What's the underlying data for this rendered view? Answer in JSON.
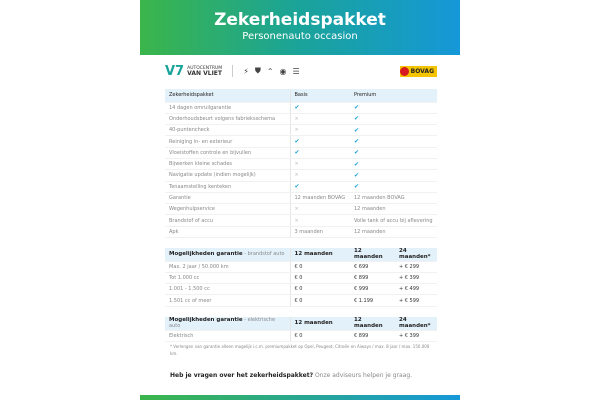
{
  "header": {
    "title": "Zekerheidspakket",
    "subtitle": "Personenauto occasion"
  },
  "logos": {
    "brand_line1": "AUTOCENTRUM",
    "brand_line2": "VAN VLIET",
    "car_brands": [
      "Opel",
      "Peugeot",
      "Citroën",
      "Dacia-like"
    ],
    "bovag": "BOVAG"
  },
  "package_table": {
    "headers": [
      "Zekerheidspakket",
      "Basis",
      "Premium"
    ],
    "rows": [
      [
        "14 dagen omruilgarantie",
        "check",
        "check"
      ],
      [
        "Onderhoudsbeurt volgens fabrieksschema",
        "cross",
        "check"
      ],
      [
        "40-puntencheck",
        "cross",
        "check"
      ],
      [
        "Reiniging in- en exterieur",
        "check",
        "check"
      ],
      [
        "Vloeistoffen controle en bijvullen",
        "check",
        "check"
      ],
      [
        "Bijwerken kleine schades",
        "cross",
        "check"
      ],
      [
        "Navigatie update (indien mogelijk)",
        "cross",
        "check"
      ],
      [
        "Tenaamstelling kenteken",
        "check",
        "check"
      ],
      [
        "Garantie",
        "12 maanden BOVAG",
        "12 maanden BOVAG"
      ],
      [
        "Wegenhulpservice",
        "cross",
        "12 maanden"
      ],
      [
        "Brandstof of accu",
        "cross",
        "Volle tank of accu bij aflevering"
      ],
      [
        "Apk",
        "3 maanden",
        "12 maanden"
      ]
    ]
  },
  "fuel_table": {
    "title": "Mogelijkheden garantie",
    "subtitle": "- brandstof auto",
    "headers": [
      "12 maanden",
      "12 maanden",
      "24 maanden*"
    ],
    "rows": [
      [
        "Max. 2 jaar / 50.000 km",
        "€ 0",
        "€ 699",
        "+ € 299"
      ],
      [
        "Tot 1.000 cc",
        "€ 0",
        "€ 899",
        "+ € 399"
      ],
      [
        "1.001 - 1.500 cc",
        "€ 0",
        "€ 999",
        "+ € 499"
      ],
      [
        "1.501 cc of meer",
        "€ 0",
        "€ 1.199",
        "+ € 599"
      ]
    ]
  },
  "electric_table": {
    "title": "Mogelijkheden garantie",
    "subtitle": "- elektrische auto",
    "headers": [
      "12 maanden",
      "12 maanden",
      "24 maanden*"
    ],
    "rows": [
      [
        "Elektrisch",
        "€ 0",
        "€ 899",
        "+ € 399"
      ]
    ]
  },
  "footnote": "* Verlengen van garantie alleen mogelijk i.c.m. premiumpakket op Opel, Peugeot, Citroën en Aiways / max. 8 jaar / max. 150.000 km.",
  "question": {
    "bold": "Heb je vragen over het zekerheidspakket?",
    "text": " Onze adviseurs helpen je graag."
  },
  "colors": {
    "check": "#1aa0d8",
    "gradient_start": "#3bb54a",
    "gradient_end": "#1598d8",
    "header_row": "#e3f1fb"
  }
}
